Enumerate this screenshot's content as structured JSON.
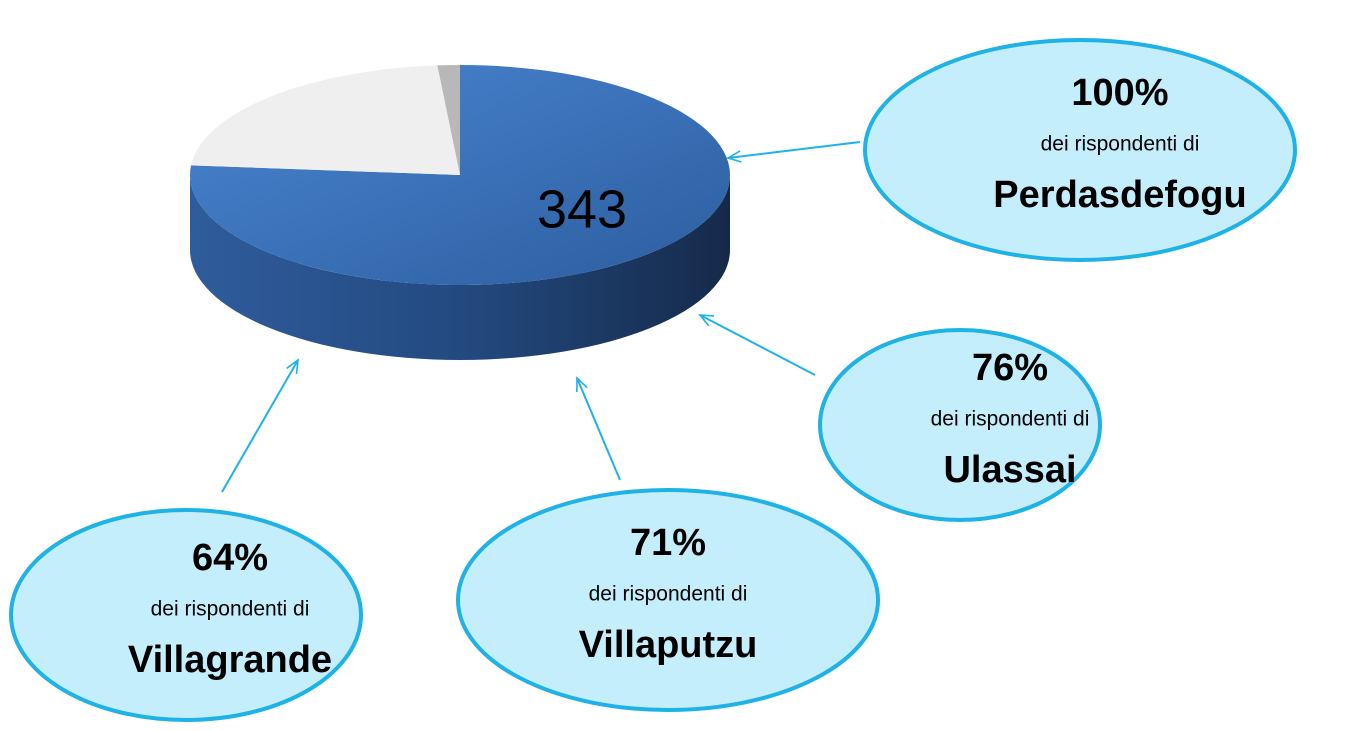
{
  "chart_data": {
    "type": "pie",
    "categories": [
      null,
      null,
      null
    ],
    "values": [
      343,
      100,
      6
    ],
    "value_labels": [
      "343",
      null,
      null
    ],
    "colors": [
      "#3a73c0",
      "#efefef",
      "#b8b8b8"
    ],
    "annotations": [
      {
        "value": "100%",
        "text": "dei rispondenti di",
        "place": "Perdasdefogu"
      },
      {
        "value": "76%",
        "text": "dei rispondenti di",
        "place": "Ulassai"
      },
      {
        "value": "71%",
        "text": "dei rispondenti di",
        "place": "Villaputzu"
      },
      {
        "value": "64%",
        "text": "dei rispondenti di",
        "place": "Villagrande"
      }
    ]
  }
}
